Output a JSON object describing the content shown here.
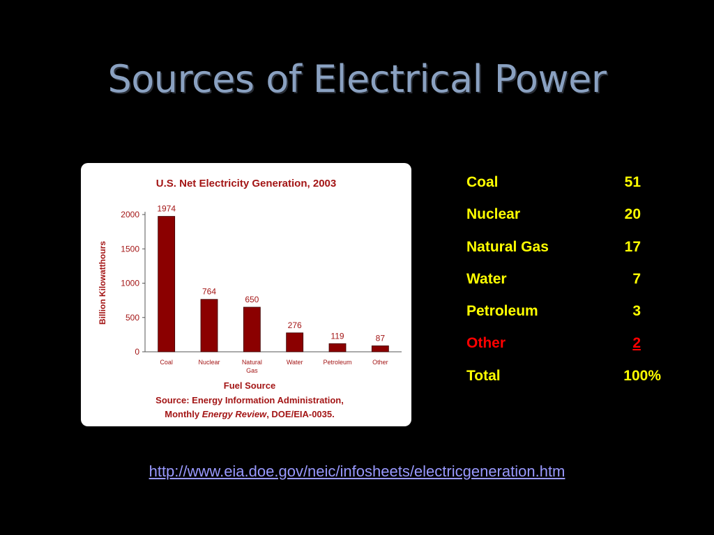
{
  "slide": {
    "title": "Sources of Electrical Power",
    "link": "http://www.eia.doe.gov/neic/infosheets/electricgeneration.htm"
  },
  "colors": {
    "background": "#000000",
    "title": "#8aa1c1",
    "table_text": "#ffff00",
    "other_text": "#ff0000",
    "bar": "#8b0000",
    "chart_text": "#a31515",
    "link": "#9999ff"
  },
  "chart_data": {
    "type": "bar",
    "title": "U.S. Net Electricity Generation, 2003",
    "xlabel": "Fuel Source",
    "ylabel": "Billion Kilowatthours",
    "categories": [
      "Coal",
      "Nuclear",
      "Natural Gas",
      "Water",
      "Petroleum",
      "Other"
    ],
    "category_lines": [
      [
        "Coal"
      ],
      [
        "Nuclear"
      ],
      [
        "Natural",
        "Gas"
      ],
      [
        "Water"
      ],
      [
        "Petroleum"
      ],
      [
        "Other"
      ]
    ],
    "values": [
      1974,
      764,
      650,
      276,
      119,
      87
    ],
    "data_labels": [
      "1974",
      "764",
      "650",
      "276",
      "119",
      "87"
    ],
    "ylim": [
      0,
      2000
    ],
    "yticks": [
      0,
      500,
      1000,
      1500,
      2000
    ],
    "source_line1": "Source: Energy Information Administration,",
    "source_line2_prefix": "Monthly ",
    "source_line2_italic": "Energy Review",
    "source_line2_suffix": ", DOE/EIA-0035.",
    "grid": false,
    "legend": "none"
  },
  "share_table": {
    "rows": [
      {
        "label": "Coal",
        "value": "51"
      },
      {
        "label": "Nuclear",
        "value": "20"
      },
      {
        "label": "Natural Gas",
        "value": "17"
      },
      {
        "label": "Water",
        "value": "7"
      },
      {
        "label": "Petroleum",
        "value": "3"
      },
      {
        "label": "Other",
        "value": "2"
      },
      {
        "label": "Total",
        "value": "100%"
      }
    ]
  }
}
